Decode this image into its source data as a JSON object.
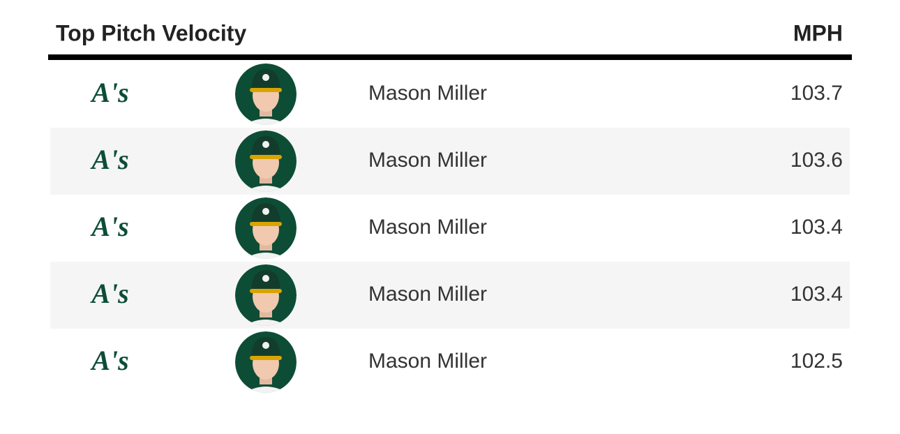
{
  "header": {
    "title": "Top Pitch Velocity",
    "unit": "MPH"
  },
  "table": {
    "rows": [
      {
        "team": "A's",
        "player": "Mason Miller",
        "mph": 103.7
      },
      {
        "team": "A's",
        "player": "Mason Miller",
        "mph": 103.6
      },
      {
        "team": "A's",
        "player": "Mason Miller",
        "mph": 103.4
      },
      {
        "team": "A's",
        "player": "Mason Miller",
        "mph": 103.4
      },
      {
        "team": "A's",
        "player": "Mason Miller",
        "mph": 102.5
      }
    ]
  }
}
